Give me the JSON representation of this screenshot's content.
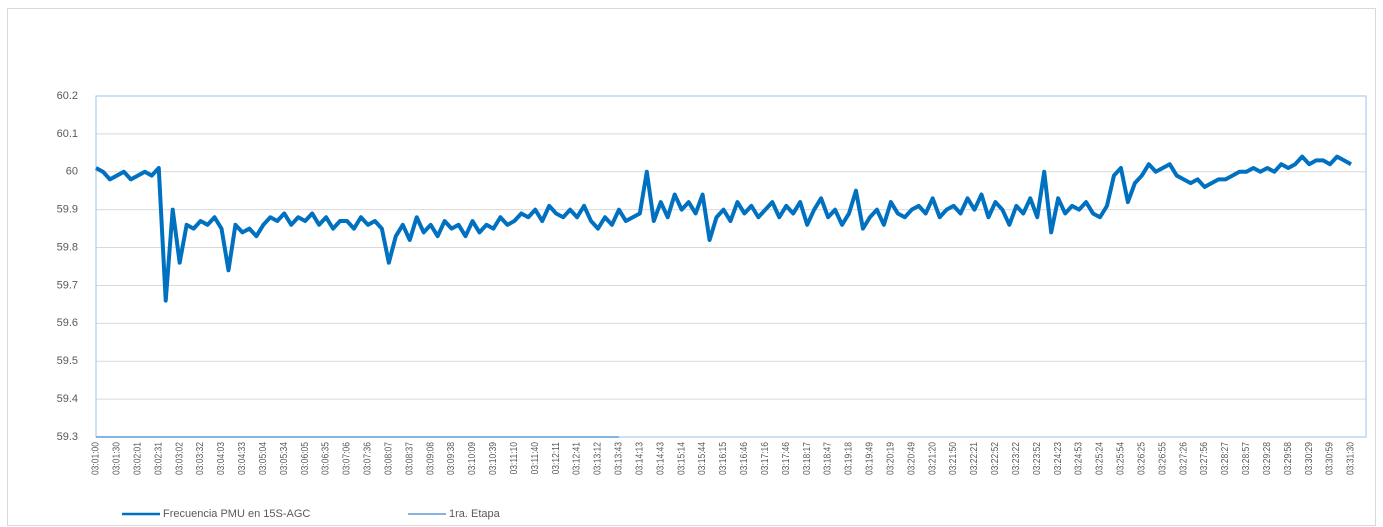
{
  "chart_data": {
    "type": "line",
    "categories": [
      "03:01:00",
      null,
      null,
      "03:01:30",
      null,
      null,
      "03:02:01",
      null,
      null,
      "03:02:31",
      null,
      null,
      "03:03:02",
      null,
      null,
      "03:03:32",
      null,
      null,
      "03:04:03",
      null,
      null,
      "03:04:33",
      null,
      null,
      "03:05:04",
      null,
      null,
      "03:05:34",
      null,
      null,
      "03:06:05",
      null,
      null,
      "03:06:35",
      null,
      null,
      "03:07:06",
      null,
      null,
      "03:07:36",
      null,
      null,
      "03:08:07",
      null,
      null,
      "03:08:37",
      null,
      null,
      "03:09:08",
      null,
      null,
      "03:09:38",
      null,
      null,
      "03:10:09",
      null,
      null,
      "03:10:39",
      null,
      null,
      "03:11:10",
      null,
      null,
      "03:11:40",
      null,
      null,
      "03:12:11",
      null,
      null,
      "03:12:41",
      null,
      null,
      "03:13:12",
      null,
      null,
      "03:13:43",
      null,
      null,
      "03:14:13",
      null,
      null,
      "03:14:43",
      null,
      null,
      "03:15:14",
      null,
      null,
      "03:15:44",
      null,
      null,
      "03:16:15",
      null,
      null,
      "03:16:46",
      null,
      null,
      "03:17:16",
      null,
      null,
      "03:17:46",
      null,
      null,
      "03:18:17",
      null,
      null,
      "03:18:47",
      null,
      null,
      "03:19:18",
      null,
      null,
      "03:19:49",
      null,
      null,
      "03:20:19",
      null,
      null,
      "03:20:49",
      null,
      null,
      "03:21:20",
      null,
      null,
      "03:21:50",
      null,
      null,
      "03:22:21",
      null,
      null,
      "03:22:52",
      null,
      null,
      "03:23:22",
      null,
      null,
      "03:23:52",
      null,
      null,
      "03:24:23",
      null,
      null,
      "03:24:53",
      null,
      null,
      "03:25:24",
      null,
      null,
      "03:25:54",
      null,
      null,
      "03:26:25",
      null,
      null,
      "03:26:55",
      null,
      null,
      "03:27:26",
      null,
      null,
      "03:27:56",
      null,
      null,
      "03:28:27",
      null,
      null,
      "03:28:57",
      null,
      null,
      "03:29:28",
      null,
      null,
      "03:29:58",
      null,
      null,
      "03:30:29",
      null,
      null,
      "03:30:59",
      null,
      null,
      "03:31:30"
    ],
    "series": [
      {
        "name": "Frecuencia PMU en 15S-AGC",
        "color": "#0070c0",
        "values": [
          60.01,
          60.0,
          59.98,
          59.99,
          60.0,
          59.98,
          59.99,
          60.0,
          59.99,
          60.01,
          59.66,
          59.9,
          59.76,
          59.86,
          59.85,
          59.87,
          59.86,
          59.88,
          59.85,
          59.74,
          59.86,
          59.84,
          59.85,
          59.83,
          59.86,
          59.88,
          59.87,
          59.89,
          59.86,
          59.88,
          59.87,
          59.89,
          59.86,
          59.88,
          59.85,
          59.87,
          59.87,
          59.85,
          59.88,
          59.86,
          59.87,
          59.85,
          59.76,
          59.83,
          59.86,
          59.82,
          59.88,
          59.84,
          59.86,
          59.83,
          59.87,
          59.85,
          59.86,
          59.83,
          59.87,
          59.84,
          59.86,
          59.85,
          59.88,
          59.86,
          59.87,
          59.89,
          59.88,
          59.9,
          59.87,
          59.91,
          59.89,
          59.88,
          59.9,
          59.88,
          59.91,
          59.87,
          59.85,
          59.88,
          59.86,
          59.9,
          59.87,
          59.88,
          59.89,
          60.0,
          59.87,
          59.92,
          59.88,
          59.94,
          59.9,
          59.92,
          59.89,
          59.94,
          59.82,
          59.88,
          59.9,
          59.87,
          59.92,
          59.89,
          59.91,
          59.88,
          59.9,
          59.92,
          59.88,
          59.91,
          59.89,
          59.92,
          59.86,
          59.9,
          59.93,
          59.88,
          59.9,
          59.86,
          59.89,
          59.95,
          59.85,
          59.88,
          59.9,
          59.86,
          59.92,
          59.89,
          59.88,
          59.9,
          59.91,
          59.89,
          59.93,
          59.88,
          59.9,
          59.91,
          59.89,
          59.93,
          59.9,
          59.94,
          59.88,
          59.92,
          59.9,
          59.86,
          59.91,
          59.89,
          59.93,
          59.88,
          60.0,
          59.84,
          59.93,
          59.89,
          59.91,
          59.9,
          59.92,
          59.89,
          59.88,
          59.91,
          59.99,
          60.01,
          59.92,
          59.97,
          59.99,
          60.02,
          60.0,
          60.01,
          60.02,
          59.99,
          59.98,
          59.97,
          59.98,
          59.96,
          59.97,
          59.98,
          59.98,
          59.99,
          60.0,
          60.0,
          60.01,
          60.0,
          60.01,
          60.0,
          60.02,
          60.01,
          60.02,
          60.04,
          60.02,
          60.03,
          60.03,
          60.02,
          60.04,
          60.03,
          60.02
        ]
      },
      {
        "name": "1ra. Etapa",
        "color": "#5b9bd5",
        "values": [
          59.3,
          59.3,
          59.3,
          59.3,
          59.3,
          59.3,
          59.3,
          59.3,
          59.3,
          59.3,
          59.3,
          59.3,
          59.3,
          59.3,
          59.3,
          59.3,
          59.3,
          59.3,
          59.3,
          59.3,
          59.3,
          59.3,
          59.3,
          59.3,
          59.3,
          59.3,
          59.3,
          59.3,
          59.3,
          59.3,
          59.3,
          59.3,
          59.3,
          59.3,
          59.3,
          59.3,
          59.3,
          59.3,
          59.3,
          59.3,
          59.3,
          59.3,
          59.3,
          59.3,
          59.3,
          59.3,
          59.3,
          59.3,
          59.3,
          59.3,
          59.3,
          59.3,
          59.3,
          59.3,
          59.3,
          59.3,
          59.3,
          59.3,
          59.3,
          59.3,
          59.3,
          59.3,
          59.3,
          59.3,
          59.3,
          59.3,
          59.3,
          59.3,
          59.3,
          59.3,
          59.3,
          59.3,
          59.3,
          59.3,
          59.3,
          59.3,
          null,
          null,
          null,
          null,
          null,
          null,
          null,
          null,
          null,
          null,
          null,
          null,
          null,
          null,
          null,
          null,
          null,
          null,
          null,
          null,
          null,
          null,
          null,
          null,
          null,
          null,
          null,
          null,
          null,
          null,
          null,
          null,
          null,
          null,
          null,
          null,
          null,
          null,
          null,
          null,
          null,
          null,
          null,
          null,
          null,
          null,
          null,
          null,
          null,
          null,
          null,
          null,
          null,
          null,
          null,
          null,
          null,
          null,
          null,
          null,
          null,
          null,
          null,
          null,
          null,
          null,
          null,
          null,
          null,
          null,
          null,
          null,
          null,
          null,
          null,
          null,
          null,
          null,
          null,
          null,
          null,
          null,
          null,
          null,
          null,
          null,
          null,
          null,
          null,
          null,
          null,
          null,
          null,
          null,
          null,
          null,
          null,
          null,
          null,
          null,
          null,
          null,
          null,
          null,
          null
        ]
      }
    ],
    "ylim": [
      59.3,
      60.2
    ],
    "yticks": [
      59.3,
      59.4,
      59.5,
      59.6,
      59.7,
      59.8,
      59.9,
      60,
      60.1,
      60.2
    ],
    "grid": true,
    "legend": "bottom"
  }
}
